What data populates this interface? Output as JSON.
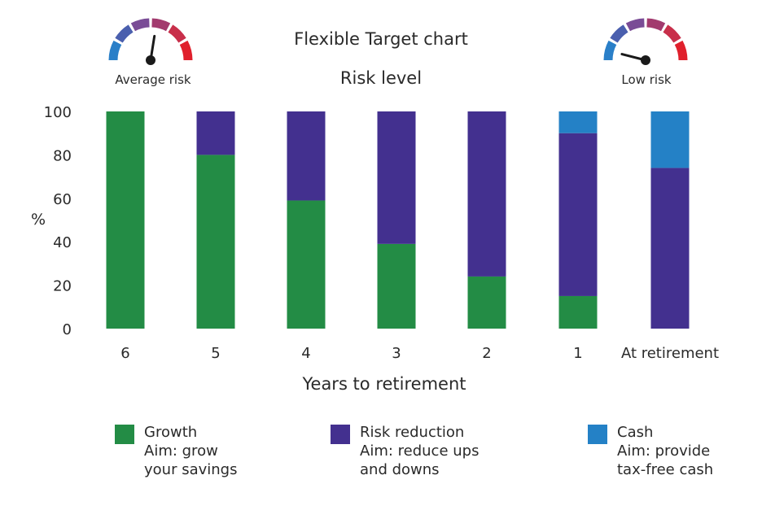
{
  "colors": {
    "growth": "#238c45",
    "risk_reduction": "#43308f",
    "cash": "#2481c6",
    "gauge": [
      "#2a7fc8",
      "#4a5fae",
      "#7a4c96",
      "#a23a6e",
      "#c82f4a",
      "#e0202c"
    ],
    "needle": "#1a1a1a"
  },
  "header": {
    "title": "Flexible Target chart",
    "subtitle": "Risk level"
  },
  "gauges": [
    {
      "label": "Average risk",
      "level": 0.55
    },
    {
      "label": "Low risk",
      "level": 0.08
    }
  ],
  "legend": [
    {
      "name": "Growth",
      "aim": "Aim: grow\nyour savings",
      "icon": "green-square"
    },
    {
      "name": "Risk reduction",
      "aim": "Aim: reduce ups\nand downs",
      "icon": "purple-square"
    },
    {
      "name": "Cash",
      "aim": "Aim: provide\ntax-free cash",
      "icon": "blue-square"
    }
  ],
  "chart_data": {
    "type": "bar",
    "stacked": true,
    "categories": [
      "6",
      "5",
      "4",
      "3",
      "2",
      "1",
      "At retirement"
    ],
    "series": [
      {
        "name": "Growth",
        "values": [
          100,
          80,
          59,
          39,
          24,
          15,
          0
        ]
      },
      {
        "name": "Risk reduction",
        "values": [
          0,
          20,
          41,
          61,
          76,
          75,
          74
        ]
      },
      {
        "name": "Cash",
        "values": [
          0,
          0,
          0,
          0,
          0,
          10,
          26
        ]
      }
    ],
    "xlabel": "Years to retirement",
    "ylabel": "%",
    "ylim": [
      0,
      100
    ],
    "yticks": [
      0,
      20,
      40,
      60,
      80,
      100
    ],
    "grid": false
  }
}
